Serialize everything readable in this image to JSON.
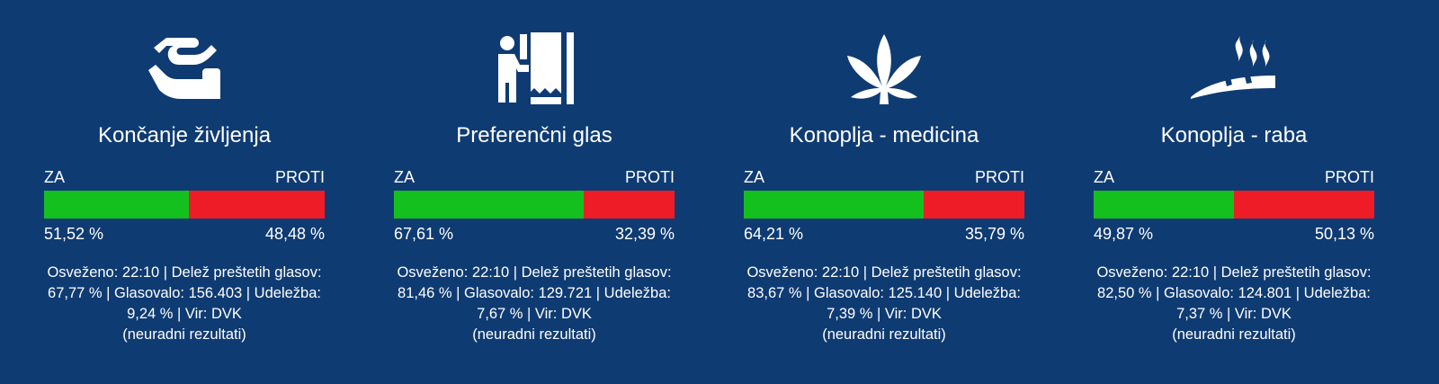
{
  "labels": {
    "yes": "ZA",
    "no": "PROTI"
  },
  "colors": {
    "background": "#0f3b73",
    "yes": "#14c01e",
    "no": "#ee1c27",
    "text": "#ffffff"
  },
  "cards": [
    {
      "icon": "hands-care-icon",
      "title": "Končanje življenja",
      "yes_pct": 51.52,
      "yes_text": "51,52 %",
      "no_text": "48,48 %",
      "info_main": "Osveženo: 22:10 | Delež preštetih glasov: 67,77 % | Glasovalo: 156.403 | Udeležba: 9,24 % | Vir: DVK",
      "info_note": "(neuradni rezultati)"
    },
    {
      "icon": "voting-booth-icon",
      "title": "Preferenčni glas",
      "yes_pct": 67.61,
      "yes_text": "67,61 %",
      "no_text": "32,39 %",
      "info_main": "Osveženo: 22:10 | Delež preštetih glasov: 81,46 % | Glasovalo: 129.721 | Udeležba: 7,67 % | Vir: DVK",
      "info_note": "(neuradni rezultati)"
    },
    {
      "icon": "cannabis-leaf-icon",
      "title": "Konoplja - medicina",
      "yes_pct": 64.21,
      "yes_text": "64,21 %",
      "no_text": "35,79 %",
      "info_main": "Osveženo: 22:10 | Delež preštetih glasov: 83,67 % | Glasovalo: 125.140 | Udeležba: 7,39 % | Vir: DVK",
      "info_note": "(neuradni rezultati)"
    },
    {
      "icon": "smoking-joint-icon",
      "title": "Konoplja - raba",
      "yes_pct": 49.87,
      "yes_text": "49,87 %",
      "no_text": "50,13 %",
      "info_main": "Osveženo: 22:10 | Delež preštetih glasov: 82,50 % | Glasovalo: 124.801 | Udeležba: 7,37 % | Vir: DVK",
      "info_note": "(neuradni rezultati)"
    }
  ]
}
